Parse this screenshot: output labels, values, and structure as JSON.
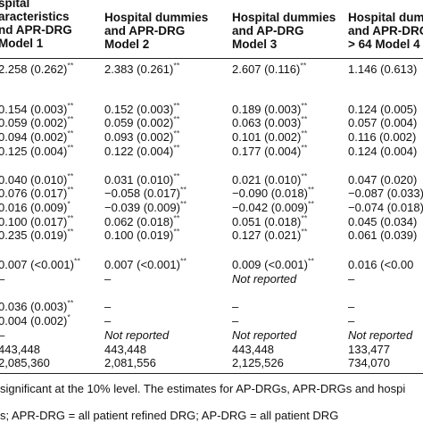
{
  "headers": [
    [
      "spital",
      "aracteristics",
      "nd APR-DRG",
      "Model 1"
    ],
    [
      "Hospital dummies",
      "and APR-DRG",
      "Model 2"
    ],
    [
      "Hospital dummies",
      "and AP-DRG",
      "Model 3"
    ],
    [
      "Hospital dumm",
      "and APR-DRG,",
      "> 64 Model 4"
    ]
  ],
  "rows": [
    [
      [
        "2.258 (0.262)",
        "**"
      ],
      [
        "2.383 (0.261)",
        "**"
      ],
      [
        "2.607 (0.116)",
        "**"
      ],
      [
        "1.146 (0.613)",
        ""
      ]
    ],
    [
      [
        "0.154 (0.003)",
        "**"
      ],
      [
        "0.152 (0.003)",
        "**"
      ],
      [
        "0.189 (0.003)",
        "**"
      ],
      [
        "0.124 (0.005)",
        ""
      ]
    ],
    [
      [
        "0.059 (0.002)",
        "**"
      ],
      [
        "0.059 (0.002)",
        "**"
      ],
      [
        "0.063 (0.003)",
        "**"
      ],
      [
        "0.057 (0.004)",
        ""
      ]
    ],
    [
      [
        "0.094 (0.002)",
        "**"
      ],
      [
        "0.093 (0.002)",
        "**"
      ],
      [
        "0.101 (0.002)",
        "**"
      ],
      [
        "0.116 (0.002)",
        ""
      ]
    ],
    [
      [
        "0.125 (0.004)",
        "**"
      ],
      [
        "0.122 (0.004)",
        "**"
      ],
      [
        "0.177 (0.004)",
        "**"
      ],
      [
        "0.124 (0.004)",
        ""
      ]
    ],
    [
      [
        "0.040 (0.010)",
        "**"
      ],
      [
        "0.031 (0.010)",
        "**"
      ],
      [
        "0.021 (0.010)",
        "**"
      ],
      [
        "0.047 (0.020)",
        ""
      ]
    ],
    [
      [
        "0.076 (0.017)",
        "**"
      ],
      [
        "−0.058 (0.017)",
        "**"
      ],
      [
        "−0.090 (0.018)",
        "**"
      ],
      [
        "−0.087 (0.033)",
        ""
      ]
    ],
    [
      [
        "0.016 (0.009)",
        "*"
      ],
      [
        "−0.039 (0.009)",
        "**"
      ],
      [
        "−0.042 (0.009)",
        "**"
      ],
      [
        "−0.074 (0.018)",
        ""
      ]
    ],
    [
      [
        "0.100 (0.017)",
        "**"
      ],
      [
        "0.062 (0.018)",
        "**"
      ],
      [
        "0.051 (0.018)",
        "**"
      ],
      [
        "0.045 (0.034)",
        ""
      ]
    ],
    [
      [
        "0.235 (0.019)",
        "**"
      ],
      [
        "0.100 (0.019)",
        "**"
      ],
      [
        "0.127 (0.021)",
        "**"
      ],
      [
        "0.061 (0.039)",
        ""
      ]
    ],
    [
      [
        "0.007 (<0.001)",
        "**"
      ],
      [
        "0.007 (<0.001)",
        "**"
      ],
      [
        "0.009 (<0.001)",
        "**"
      ],
      [
        "0.016 (<0.00",
        ""
      ]
    ],
    [
      [
        "–",
        ""
      ],
      [
        "–",
        ""
      ],
      [
        "Not reported",
        ""
      ],
      [
        "–",
        ""
      ]
    ],
    [
      [
        "0.036 (0.003)",
        "**"
      ],
      [
        "–",
        ""
      ],
      [
        "–",
        ""
      ],
      [
        "–",
        ""
      ]
    ],
    [
      [
        "0.004 (0.002)",
        "*"
      ],
      [
        "–",
        ""
      ],
      [
        "–",
        ""
      ],
      [
        "–",
        ""
      ]
    ],
    [
      [
        "–",
        ""
      ],
      [
        "Not reported",
        ""
      ],
      [
        "Not reported",
        ""
      ],
      [
        "Not reported",
        ""
      ]
    ],
    [
      [
        "443,448",
        ""
      ],
      [
        "443,448",
        ""
      ],
      [
        "443,448",
        ""
      ],
      [
        "133,477",
        ""
      ]
    ],
    [
      [
        "2,085,360",
        ""
      ],
      [
        "2,081,556",
        ""
      ],
      [
        "2,125,526",
        ""
      ],
      [
        "734,070",
        ""
      ]
    ]
  ],
  "notes": [
    "significant at the 10% level. The estimates for AP-DRGs, APR-DRGs and hospi",
    "s; APR-DRG = all patient refined DRG; AP-DRG = all patient DRG"
  ]
}
